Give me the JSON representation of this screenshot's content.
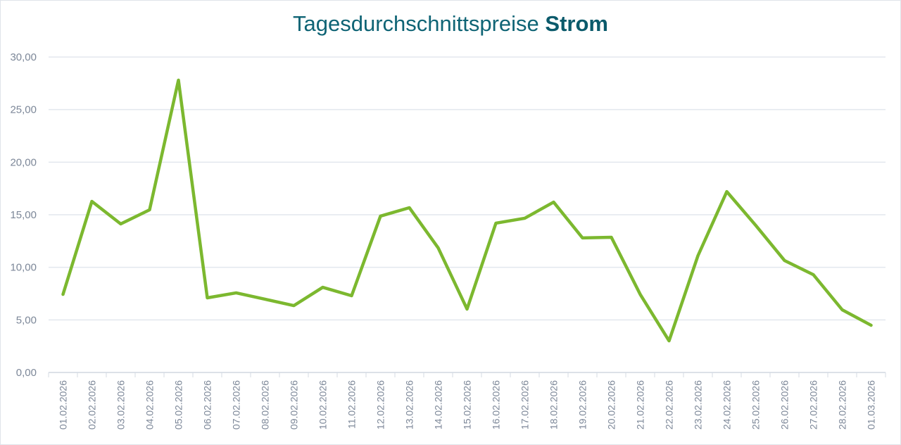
{
  "chart_data": {
    "type": "line",
    "title": "Tagesdurchschnittspreise",
    "title_bold": "Strom",
    "xlabel": "",
    "ylabel": "",
    "ylim": [
      0,
      30
    ],
    "yticks": [
      "0,00",
      "5,00",
      "10,00",
      "15,00",
      "20,00",
      "25,00",
      "30,00"
    ],
    "grid": true,
    "line_color": "#7cb82f",
    "categories": [
      "01.02.2026",
      "02.02.2026",
      "03.02.2026",
      "04.02.2026",
      "05.02.2026",
      "06.02.2026",
      "07.02.2026",
      "08.02.2026",
      "09.02.2026",
      "10.02.2026",
      "11.02.2026",
      "12.02.2026",
      "13.02.2026",
      "14.02.2026",
      "15.02.2026",
      "16.02.2026",
      "17.02.2026",
      "18.02.2026",
      "19.02.2026",
      "20.02.2026",
      "21.02.2026",
      "22.02.2026",
      "23.02.2026",
      "24.02.2026",
      "25.02.2026",
      "26.02.2026",
      "27.02.2026",
      "28.02.2026",
      "01.03.2026"
    ],
    "values": [
      7.43,
      16.27,
      14.13,
      15.47,
      27.8,
      7.1,
      7.57,
      6.97,
      6.36,
      8.1,
      7.3,
      14.87,
      15.67,
      11.85,
      6.03,
      14.2,
      14.67,
      16.2,
      12.8,
      12.86,
      7.43,
      3.01,
      11.1,
      17.2,
      14.0,
      10.65,
      9.3,
      5.96,
      4.49
    ]
  }
}
